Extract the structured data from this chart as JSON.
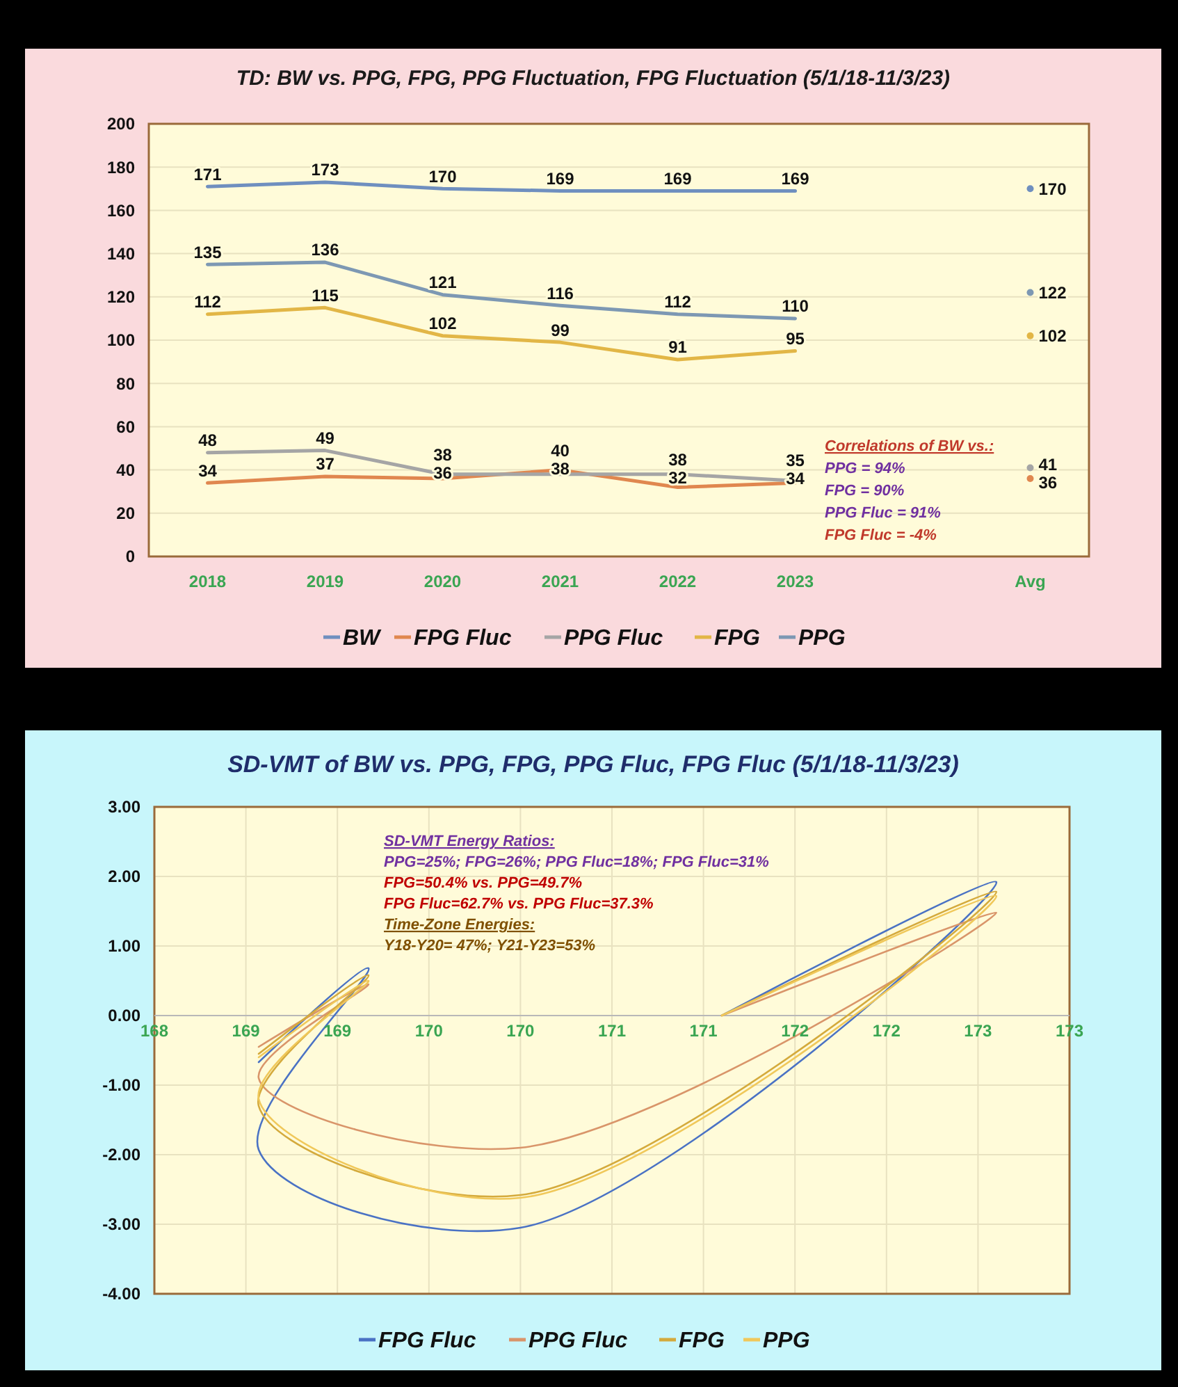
{
  "chart_data": [
    {
      "type": "line",
      "title": "TD: BW vs. PPG, FPG, PPG Fluctuation, FPG Fluctuation  (5/1/18-11/3/23)",
      "categories": [
        "2018",
        "2019",
        "2020",
        "2021",
        "2022",
        "2023",
        null,
        "Avg"
      ],
      "series": [
        {
          "name": "BW",
          "color": "#6f8fbf",
          "values": [
            171,
            173,
            170,
            169,
            169,
            169,
            null,
            170
          ]
        },
        {
          "name": "FPG Fluc",
          "color": "#e0874f",
          "values": [
            34,
            37,
            36,
            40,
            32,
            34,
            null,
            36
          ]
        },
        {
          "name": "PPG Fluc",
          "color": "#a5a5a5",
          "values": [
            48,
            49,
            38,
            38,
            38,
            35,
            null,
            41
          ]
        },
        {
          "name": "FPG",
          "color": "#e2b646",
          "values": [
            112,
            115,
            102,
            99,
            91,
            95,
            null,
            102
          ]
        },
        {
          "name": "PPG",
          "color": "#7d98b3",
          "values": [
            135,
            136,
            121,
            116,
            112,
            110,
            null,
            122
          ]
        }
      ],
      "ylim": [
        0,
        200
      ],
      "yticks": [
        0,
        20,
        40,
        60,
        80,
        100,
        120,
        140,
        160,
        180,
        200
      ],
      "grid": "y",
      "legend": "bottom",
      "data_labels": true,
      "marker": "none",
      "annotations": [
        "Correlations of BW vs.:",
        "PPG = 94%",
        "FPG = 90%",
        "PPG Fluc = 91%",
        "FPG Fluc = -4%"
      ]
    },
    {
      "type": "line",
      "title": "SD-VMT of BW vs. PPG, FPG, PPG Fluc, FPG Fluc  (5/1/18-11/3/23)",
      "x": [
        171.1,
        172.6,
        170.0,
        168.57,
        169.17,
        168.57
      ],
      "series": [
        {
          "name": "FPG Fluc",
          "color": "#4a72c4",
          "values": [
            0,
            1.92,
            -3.05,
            -1.93,
            0.68,
            -0.67
          ]
        },
        {
          "name": "PPG Fluc",
          "color": "#d9956a",
          "values": [
            0,
            1.48,
            -1.9,
            -0.9,
            0.45,
            -0.45
          ]
        },
        {
          "name": "FPG",
          "color": "#d4aa3c",
          "values": [
            0,
            1.78,
            -2.58,
            -1.3,
            0.58,
            -0.55
          ]
        },
        {
          "name": "PPG",
          "color": "#f0c85a",
          "values": [
            0,
            1.72,
            -2.62,
            -1.2,
            0.5,
            -0.6
          ]
        }
      ],
      "xlim": [
        168,
        173
      ],
      "xticks": [
        {
          "value": 168,
          "label": "168"
        },
        {
          "value": 168.5,
          "label": "169"
        },
        {
          "value": 169,
          "label": "169"
        },
        {
          "value": 169.5,
          "label": "170"
        },
        {
          "value": 170,
          "label": "170"
        },
        {
          "value": 170.5,
          "label": "171"
        },
        {
          "value": 171,
          "label": "171"
        },
        {
          "value": 171.5,
          "label": "172"
        },
        {
          "value": 172,
          "label": "172"
        },
        {
          "value": 172.5,
          "label": "173"
        },
        {
          "value": 173,
          "label": "173"
        }
      ],
      "ylim": [
        -4,
        3
      ],
      "yticks": [
        {
          "value": -4,
          "label": "-4.00"
        },
        {
          "value": -3,
          "label": "-3.00"
        },
        {
          "value": -2,
          "label": "-2.00"
        },
        {
          "value": -1,
          "label": "-1.00"
        },
        {
          "value": 0,
          "label": "0.00"
        },
        {
          "value": 1,
          "label": "1.00"
        },
        {
          "value": 2,
          "label": "2.00"
        },
        {
          "value": 3,
          "label": "3.00"
        }
      ],
      "grid": true,
      "legend": "bottom",
      "marker": "none",
      "annotations": [
        "SD-VMT Energy Ratios:",
        "PPG=25%; FPG=26%; PPG Fluc=18%; FPG Fluc=31%",
        "FPG=50.4% vs. PPG=49.7%",
        "FPG Fluc=62.7% vs. PPG Fluc=37.3%",
        "Time-Zone Energies:",
        "Y18-Y20= 47%;  Y21-Y23=53%"
      ]
    }
  ]
}
